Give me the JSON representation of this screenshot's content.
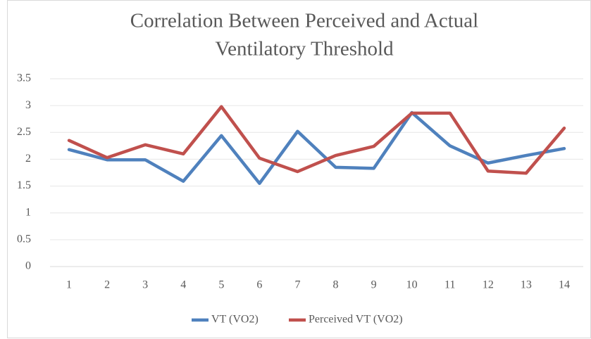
{
  "chart_data": {
    "type": "line",
    "title": [
      "Correlation Between Perceived and Actual",
      "Ventilatory Threshold"
    ],
    "categories": [
      "1",
      "2",
      "3",
      "4",
      "5",
      "6",
      "7",
      "8",
      "9",
      "10",
      "11",
      "12",
      "13",
      "14"
    ],
    "series": [
      {
        "name": "VT (VO2)",
        "color": "#4f81bd",
        "values": [
          2.18,
          1.99,
          1.99,
          1.59,
          2.44,
          1.55,
          2.52,
          1.85,
          1.83,
          2.87,
          2.25,
          1.93,
          2.07,
          2.2
        ]
      },
      {
        "name": "Perceived VT (VO2)",
        "color": "#c0504d",
        "values": [
          2.35,
          2.03,
          2.27,
          2.1,
          2.98,
          2.02,
          1.77,
          2.07,
          2.24,
          2.86,
          2.86,
          1.78,
          1.74,
          2.58
        ]
      }
    ],
    "ylim": [
      0,
      3.5
    ],
    "yticks": [
      0,
      0.5,
      1,
      1.5,
      2,
      2.5,
      3,
      3.5
    ],
    "grid": true,
    "legend": "bottom"
  }
}
